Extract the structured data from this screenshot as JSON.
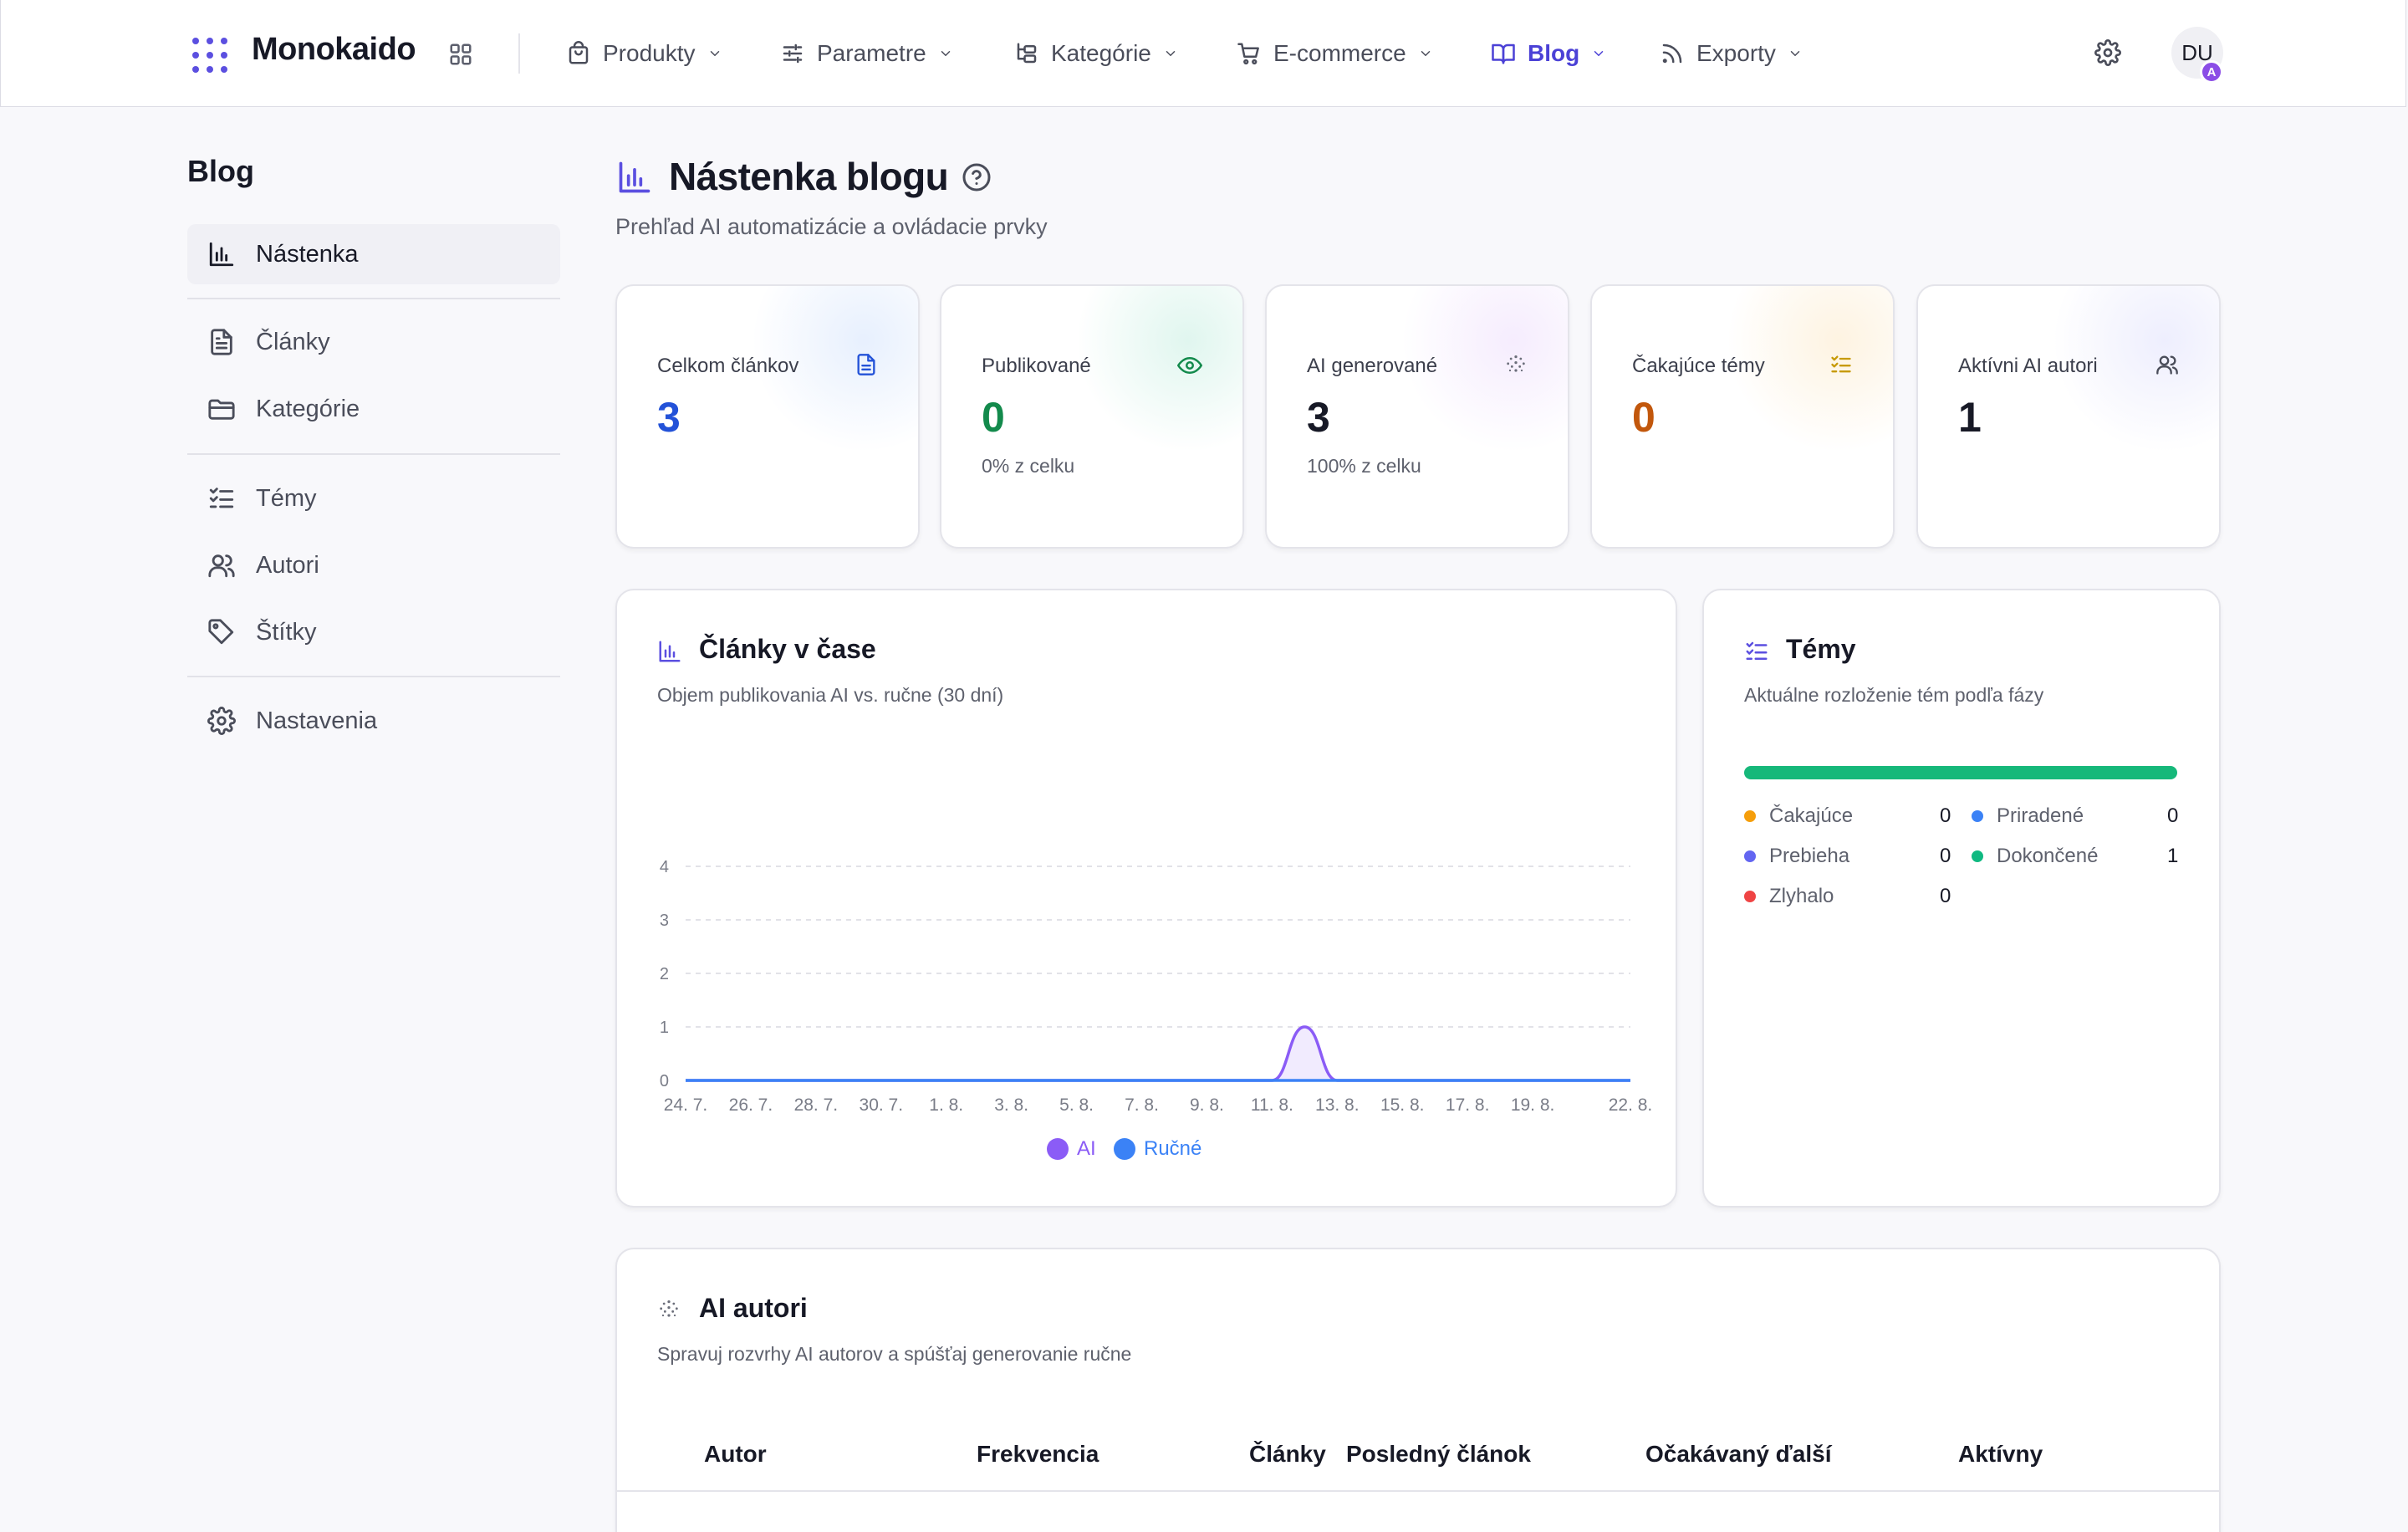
{
  "brand": {
    "name": "Monokaido",
    "accent": "#4b41d6"
  },
  "nav": {
    "items": [
      {
        "label": "Produkty",
        "icon": "bag-icon"
      },
      {
        "label": "Parametre",
        "icon": "sliders-icon"
      },
      {
        "label": "Kategórie",
        "icon": "tree-icon"
      },
      {
        "label": "E-commerce",
        "icon": "cart-icon"
      },
      {
        "label": "Blog",
        "icon": "book-icon",
        "active": true
      },
      {
        "label": "Exporty",
        "icon": "rss-icon"
      }
    ],
    "user": {
      "initials": "DU",
      "badge": "A"
    }
  },
  "sidebar": {
    "title": "Blog",
    "items": [
      {
        "label": "Nástenka",
        "icon": "bar-chart-icon",
        "active": true
      },
      {
        "label": "Články",
        "icon": "document-icon"
      },
      {
        "label": "Kategórie",
        "icon": "folder-icon"
      },
      {
        "label": "Témy",
        "icon": "checklist-icon"
      },
      {
        "label": "Autori",
        "icon": "users-icon"
      },
      {
        "label": "Štítky",
        "icon": "tag-icon"
      },
      {
        "label": "Nastavenia",
        "icon": "gear-icon"
      }
    ]
  },
  "page": {
    "title": "Nástenka blogu",
    "subtitle": "Prehľad AI automatizácie a ovládacie prvky"
  },
  "stats": [
    {
      "label": "Celkom článkov",
      "value": "3",
      "note": "",
      "color": "#2352d8",
      "icon": "document-icon"
    },
    {
      "label": "Publikované",
      "value": "0",
      "note": "0% z celku",
      "color": "#138a4c",
      "icon": "eye-icon"
    },
    {
      "label": "AI generované",
      "value": "3",
      "note": "100% z celku",
      "color": "#171926",
      "icon": "ai-sparkle-icon"
    },
    {
      "label": "Čakajúce témy",
      "value": "0",
      "note": "",
      "color": "#c2570c",
      "icon": "checklist-icon"
    },
    {
      "label": "Aktívni AI autori",
      "value": "1",
      "note": "",
      "color": "#171926",
      "icon": "users-icon"
    }
  ],
  "articles_chart": {
    "title": "Články v čase",
    "subtitle": "Objem publikovania AI vs. ručne (30 dní)"
  },
  "chart_data": {
    "type": "area",
    "x": [
      "24. 7.",
      "25. 7.",
      "26. 7.",
      "27. 7.",
      "28. 7.",
      "29. 7.",
      "30. 7.",
      "31. 7.",
      "1. 8.",
      "2. 8.",
      "3. 8.",
      "4. 8.",
      "5. 8.",
      "6. 8.",
      "7. 8.",
      "8. 8.",
      "9. 8.",
      "10. 8.",
      "11. 8.",
      "12. 8.",
      "13. 8.",
      "14. 8.",
      "15. 8.",
      "16. 8.",
      "17. 8.",
      "18. 8.",
      "19. 8.",
      "20. 8.",
      "21. 8.",
      "22. 8."
    ],
    "x_tick_labels": [
      "24. 7.",
      "26. 7.",
      "28. 7.",
      "30. 7.",
      "1. 8.",
      "3. 8.",
      "5. 8.",
      "7. 8.",
      "9. 8.",
      "11. 8.",
      "13. 8.",
      "15. 8.",
      "17. 8.",
      "19. 8.",
      "22. 8."
    ],
    "series": [
      {
        "name": "AI",
        "color": "#8b5cf6",
        "values": [
          0,
          0,
          0,
          0,
          0,
          0,
          0,
          0,
          0,
          0,
          0,
          0,
          0,
          0,
          0,
          0,
          0,
          0,
          0,
          1,
          0,
          0,
          0,
          0,
          0,
          0,
          0,
          0,
          0,
          0
        ]
      },
      {
        "name": "Ručné",
        "color": "#3b82f6",
        "values": [
          0,
          0,
          0,
          0,
          0,
          0,
          0,
          0,
          0,
          0,
          0,
          0,
          0,
          0,
          0,
          0,
          0,
          0,
          0,
          0,
          0,
          0,
          0,
          0,
          0,
          0,
          0,
          0,
          0,
          0
        ]
      }
    ],
    "y_ticks": [
      "0",
      "1",
      "2",
      "3",
      "4"
    ],
    "ylim": [
      0,
      4
    ],
    "grid": true,
    "legend": "bottom-center"
  },
  "topics": {
    "title": "Témy",
    "subtitle": "Aktuálne rozloženie tém podľa fázy",
    "states": [
      {
        "label": "Čakajúce",
        "value": "0",
        "color": "#f59e0b"
      },
      {
        "label": "Priradené",
        "value": "0",
        "color": "#3b82f6"
      },
      {
        "label": "Prebieha",
        "value": "0",
        "color": "#6366f1"
      },
      {
        "label": "Dokončené",
        "value": "1",
        "color": "#10b981"
      },
      {
        "label": "Zlyhalo",
        "value": "0",
        "color": "#ef4444"
      }
    ],
    "completed_fraction": 1.0
  },
  "ai_authors": {
    "title": "AI autori",
    "subtitle": "Spravuj rozvrhy AI autorov a spúšťaj generovanie ručne",
    "columns": [
      "Autor",
      "Frekvencia",
      "Články",
      "Posledný článok",
      "Očakávaný ďalší",
      "Aktívny"
    ]
  }
}
